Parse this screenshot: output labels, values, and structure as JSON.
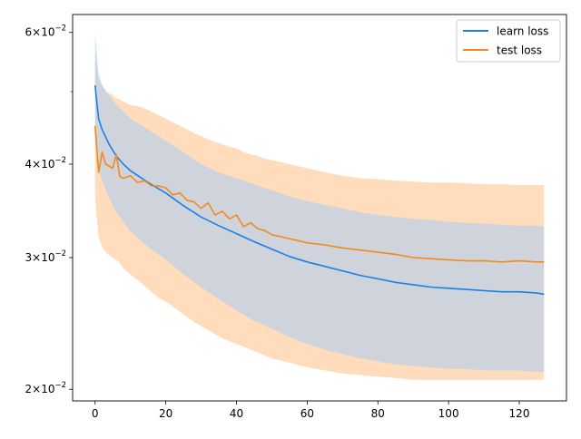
{
  "chart_data": {
    "type": "line",
    "title": "",
    "xlabel": "",
    "ylabel": "",
    "yscale": "log",
    "xlim": [
      -6.35,
      133.35
    ],
    "ylim": [
      0.0193,
      0.0634
    ],
    "grid": false,
    "legend_position": "top-right",
    "x_ticks": [
      0,
      20,
      40,
      60,
      80,
      100,
      120
    ],
    "y_ticks": [
      {
        "value": 0.02,
        "mantissa": "2",
        "base": "10",
        "exponent": "−2"
      },
      {
        "value": 0.03,
        "mantissa": "3",
        "base": "10",
        "exponent": "−2"
      },
      {
        "value": 0.04,
        "mantissa": "4",
        "base": "10",
        "exponent": "−2"
      },
      {
        "value": 0.06,
        "mantissa": "6",
        "base": "10",
        "exponent": "−2"
      }
    ],
    "series": [
      {
        "name": "learn loss",
        "color": "#1f77b4",
        "line_color": "#1a80e6",
        "band_color": "#a8cdf5",
        "x": [
          0,
          1,
          2,
          4,
          6,
          8,
          10,
          15,
          20,
          25,
          30,
          35,
          40,
          45,
          50,
          55,
          60,
          65,
          70,
          75,
          80,
          85,
          90,
          95,
          100,
          105,
          110,
          115,
          120,
          125,
          127
        ],
        "mean": [
          0.051,
          0.046,
          0.0445,
          0.0425,
          0.041,
          0.04,
          0.0392,
          0.0378,
          0.0366,
          0.0352,
          0.034,
          0.0331,
          0.0323,
          0.0315,
          0.0308,
          0.0301,
          0.0296,
          0.0292,
          0.0288,
          0.0284,
          0.0281,
          0.0278,
          0.0276,
          0.0274,
          0.0273,
          0.0272,
          0.0271,
          0.027,
          0.027,
          0.0269,
          0.0268
        ],
        "upper": [
          0.06,
          0.053,
          0.051,
          0.0495,
          0.048,
          0.047,
          0.046,
          0.0445,
          0.043,
          0.0415,
          0.04,
          0.039,
          0.0383,
          0.0376,
          0.0369,
          0.0362,
          0.0357,
          0.0353,
          0.0349,
          0.0345,
          0.0342,
          0.034,
          0.0338,
          0.0337,
          0.0335,
          0.0334,
          0.0333,
          0.0332,
          0.0331,
          0.0331,
          0.033
        ],
        "lower": [
          0.044,
          0.0395,
          0.038,
          0.036,
          0.0345,
          0.0335,
          0.0325,
          0.031,
          0.0298,
          0.0285,
          0.0274,
          0.0264,
          0.0255,
          0.0247,
          0.0241,
          0.0235,
          0.023,
          0.0226,
          0.0223,
          0.022,
          0.0218,
          0.0216,
          0.0215,
          0.0214,
          0.0213,
          0.0213,
          0.0212,
          0.0212,
          0.0212,
          0.0211,
          0.0211
        ]
      },
      {
        "name": "test loss",
        "color": "#ff7f0e",
        "line_color": "#f28a1a",
        "band_color": "#fdd0a5",
        "x": [
          0,
          1,
          2,
          3,
          5,
          6,
          7,
          8,
          10,
          12,
          14,
          16,
          18,
          20,
          22,
          24,
          26,
          28,
          30,
          32,
          34,
          36,
          38,
          40,
          42,
          44,
          46,
          48,
          50,
          55,
          60,
          65,
          70,
          75,
          80,
          85,
          90,
          95,
          100,
          105,
          110,
          115,
          120,
          125,
          127
        ],
        "mean": [
          0.045,
          0.039,
          0.0415,
          0.04,
          0.0395,
          0.0412,
          0.0385,
          0.0383,
          0.0386,
          0.0378,
          0.038,
          0.0374,
          0.0374,
          0.0372,
          0.0364,
          0.0366,
          0.0358,
          0.0356,
          0.0349,
          0.0355,
          0.0342,
          0.0346,
          0.0338,
          0.0342,
          0.033,
          0.0334,
          0.0328,
          0.0326,
          0.0322,
          0.0318,
          0.0314,
          0.0312,
          0.0309,
          0.0307,
          0.0305,
          0.0303,
          0.03,
          0.0299,
          0.0298,
          0.0297,
          0.0297,
          0.0296,
          0.0297,
          0.0296,
          0.0296
        ],
        "upper": [
          0.0565,
          0.052,
          0.051,
          0.05,
          0.0495,
          0.049,
          0.0488,
          0.0485,
          0.048,
          0.0478,
          0.0475,
          0.047,
          0.0465,
          0.046,
          0.0455,
          0.045,
          0.0445,
          0.044,
          0.0436,
          0.0432,
          0.0428,
          0.0425,
          0.0422,
          0.042,
          0.0415,
          0.0412,
          0.041,
          0.0407,
          0.0405,
          0.04,
          0.0395,
          0.039,
          0.0386,
          0.0383,
          0.0382,
          0.038,
          0.0379,
          0.0378,
          0.0378,
          0.0377,
          0.0376,
          0.0376,
          0.0375,
          0.0375,
          0.0375
        ],
        "lower": [
          0.036,
          0.032,
          0.031,
          0.0305,
          0.03,
          0.0298,
          0.0295,
          0.029,
          0.0285,
          0.028,
          0.0275,
          0.027,
          0.0265,
          0.0262,
          0.0258,
          0.0254,
          0.025,
          0.0246,
          0.0243,
          0.024,
          0.0237,
          0.0234,
          0.0232,
          0.023,
          0.0228,
          0.0226,
          0.0224,
          0.0222,
          0.022,
          0.0217,
          0.0214,
          0.0212,
          0.021,
          0.0209,
          0.0208,
          0.0207,
          0.0206,
          0.0206,
          0.0206,
          0.0206,
          0.0206,
          0.0206,
          0.0206,
          0.0206,
          0.0206
        ]
      }
    ]
  }
}
